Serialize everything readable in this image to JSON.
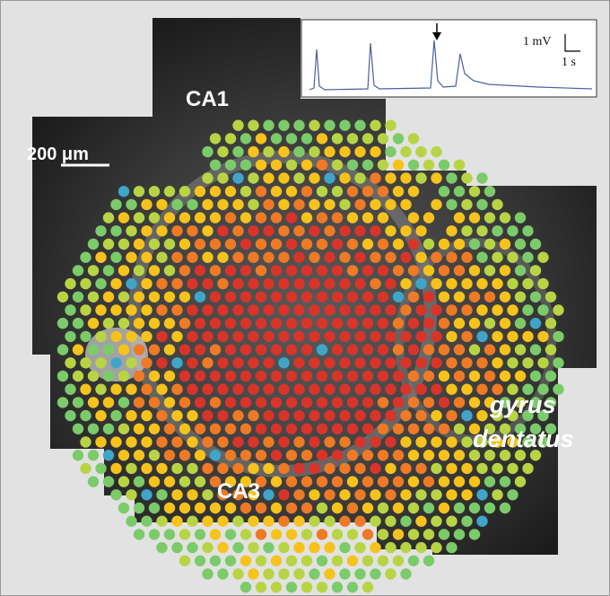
{
  "labels": {
    "ca1": "CA1",
    "ca3": "CA3",
    "scale_bar": "200 μm",
    "gyrus": "gyrus",
    "dentatus": "dentatus"
  },
  "inset": {
    "voltage_scale": "1 mV",
    "time_scale": "1 s"
  }
}
